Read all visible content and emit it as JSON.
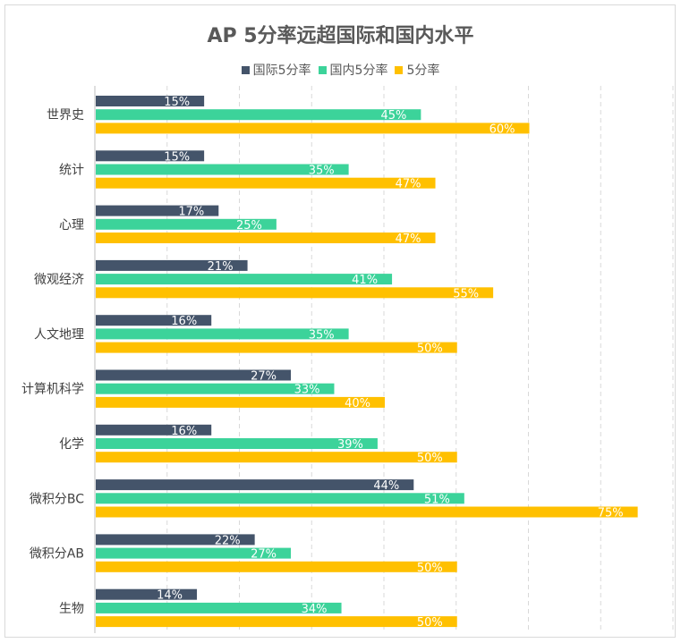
{
  "chart_data": {
    "type": "bar",
    "orientation": "horizontal",
    "title": "AP 5分率远超国际和国内水平",
    "categories": [
      "世界史",
      "统计",
      "心理",
      "微观经济",
      "人文地理",
      "计算机科学",
      "化学",
      "微积分BC",
      "微积分AB",
      "生物"
    ],
    "series": [
      {
        "name": "国际5分率",
        "color": "#44546a",
        "values": [
          15,
          15,
          17,
          21,
          16,
          27,
          16,
          44,
          22,
          14
        ]
      },
      {
        "name": "国内5分率",
        "color": "#3cd39a",
        "values": [
          45,
          35,
          25,
          41,
          35,
          33,
          39,
          51,
          27,
          34
        ]
      },
      {
        "name": "5分率",
        "color": "#ffc000",
        "values": [
          60,
          47,
          47,
          55,
          50,
          40,
          50,
          75,
          50,
          50
        ]
      }
    ],
    "value_suffix": "%",
    "xlim": [
      0,
      80
    ],
    "legend_position": "top",
    "grid": true
  }
}
